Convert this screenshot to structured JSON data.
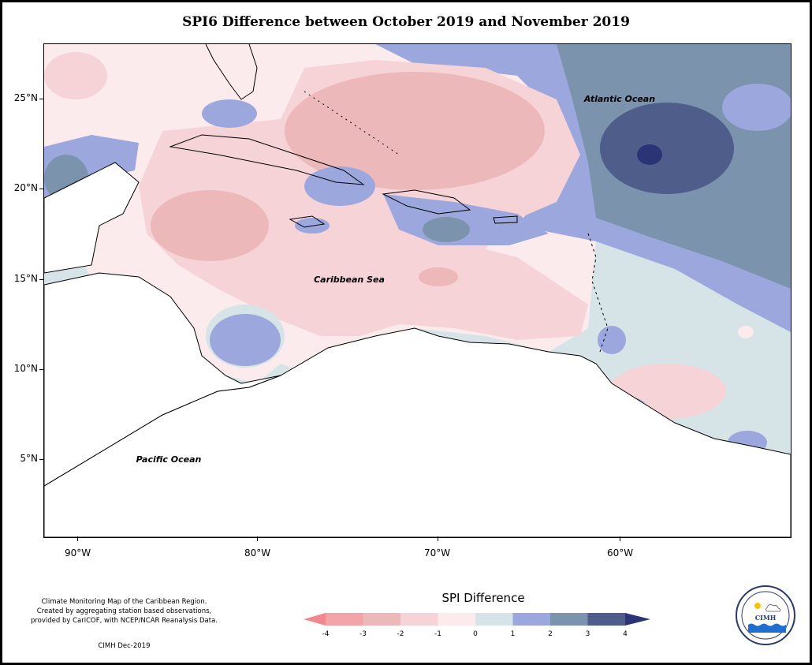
{
  "title": "SPI6 Difference between October 2019 and November 2019",
  "map": {
    "labels": {
      "atlantic": "Atlantic Ocean",
      "caribbean": "Caribbean Sea",
      "pacific": "Pacific Ocean"
    },
    "lat_ticks": [
      "25°N",
      "20°N",
      "15°N",
      "10°N",
      "5°N"
    ],
    "lon_ticks": [
      "90°W",
      "80°W",
      "70°W",
      "60°W"
    ]
  },
  "legend": {
    "title": "SPI Difference",
    "ticks": [
      "-4",
      "-3",
      "-2",
      "-1",
      "0",
      "1",
      "2",
      "3",
      "4"
    ],
    "colors": [
      "#f4a3a8",
      "#ecb8ba",
      "#f6d3d7",
      "#fcebec",
      "#d6e4e8",
      "#9ba7dd",
      "#7b93ad",
      "#4f5d8a"
    ],
    "arrow_low": "#f08890",
    "arrow_high": "#2b3575"
  },
  "caption": {
    "line1": "Climate Monitoring Map of the Caribbean Region.",
    "line2": "Created by aggregating station based observations,",
    "line3": "provided by CariCOF, with NCEP/NCAR Reanalysis Data.",
    "credit": "CIMH Dec-2019"
  },
  "logo": {
    "text": "CIMH"
  }
}
